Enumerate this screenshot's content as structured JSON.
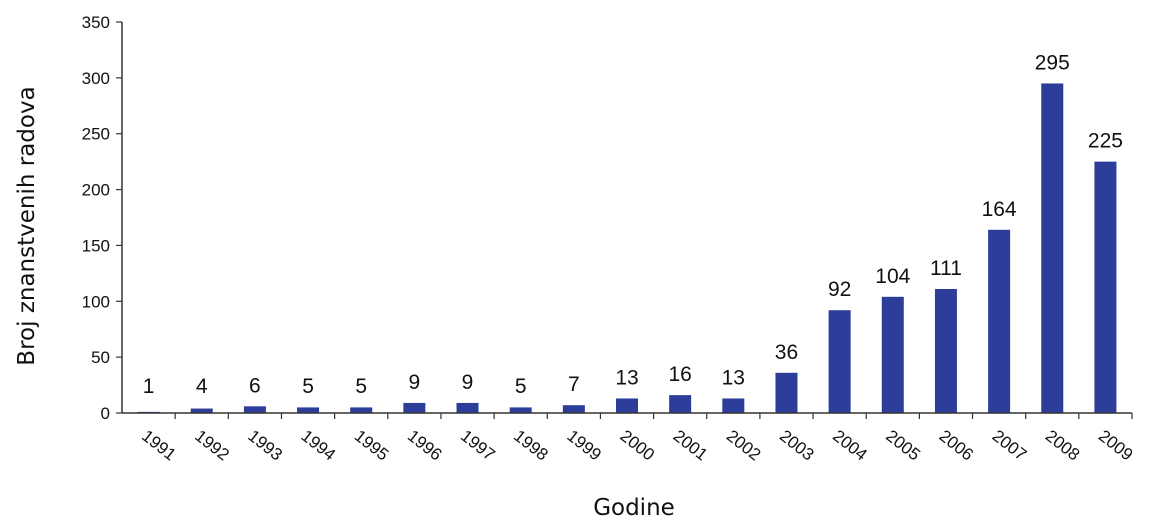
{
  "chart_data": {
    "type": "bar",
    "categories": [
      "1991",
      "1992",
      "1993",
      "1994",
      "1995",
      "1996",
      "1997",
      "1998",
      "1999",
      "2000",
      "2001",
      "2002",
      "2003",
      "2004",
      "2005",
      "2006",
      "2007",
      "2008",
      "2009"
    ],
    "values": [
      1,
      4,
      6,
      5,
      5,
      9,
      9,
      5,
      7,
      13,
      16,
      13,
      36,
      92,
      104,
      111,
      164,
      295,
      225
    ],
    "data_labels": [
      "1",
      "4",
      "6",
      "5",
      "5",
      "9",
      "9",
      "5",
      "7",
      "13",
      "16",
      "13",
      "36",
      "92",
      "104",
      "111",
      "164",
      "295",
      "225"
    ],
    "yticks": [
      "0",
      "50",
      "100",
      "150",
      "200",
      "250",
      "300",
      "350"
    ],
    "ylim": [
      0,
      350
    ],
    "xlabel": "Godine",
    "ylabel": "Broj znanstvenih radova",
    "grid": false,
    "legend": "none",
    "bar_color": "#2c3e9a"
  }
}
